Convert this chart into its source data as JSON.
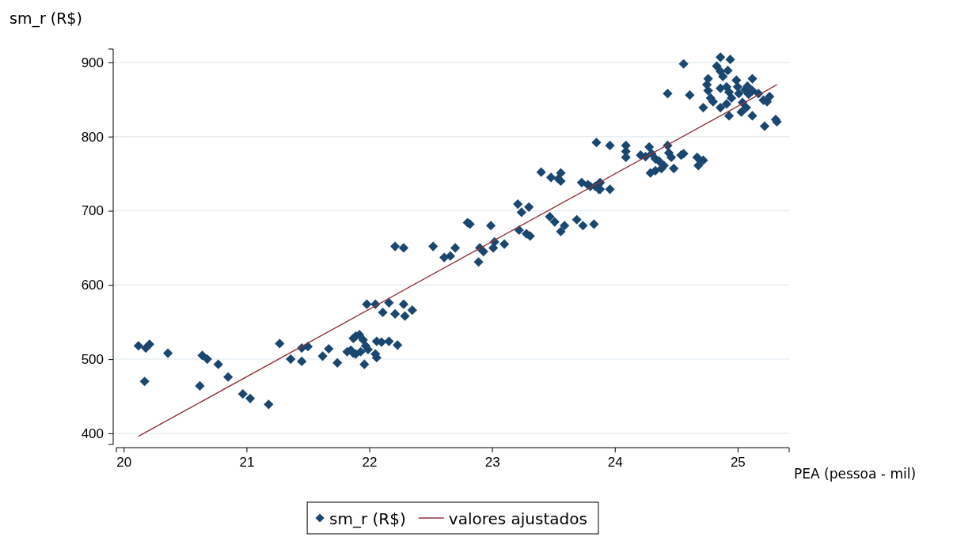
{
  "chart_data": {
    "type": "scatter",
    "xlabel": "PEA (pessoa - mil)",
    "ylabel": "sm_r (R$)",
    "xlim": [
      19.94,
      25.42
    ],
    "ylim": [
      385,
      918
    ],
    "xticks": [
      20,
      21,
      22,
      23,
      24,
      25
    ],
    "yticks": [
      400,
      500,
      600,
      700,
      800,
      900
    ],
    "grid": "y",
    "legend": "bottom",
    "series": [
      {
        "name": "sm_r (R$)",
        "color": "#1a476f",
        "marker": "diamond",
        "x": [
          20.12,
          20.18,
          20.21,
          20.17,
          20.36,
          20.62,
          20.64,
          20.68,
          20.77,
          20.85,
          20.97,
          21.03,
          21.18,
          21.27,
          21.36,
          21.45,
          21.45,
          21.5,
          21.62,
          21.67,
          21.74,
          21.82,
          21.87,
          21.87,
          21.89,
          21.92,
          21.95,
          21.85,
          21.89,
          21.93,
          21.97,
          21.99,
          21.96,
          22.05,
          22.06,
          22.06,
          22.1,
          22.16,
          22.23,
          21.98,
          22.05,
          22.16,
          22.11,
          22.21,
          22.28,
          22.29,
          22.35,
          22.21,
          22.28,
          22.52,
          22.7,
          22.61,
          22.66,
          22.89,
          22.9,
          22.93,
          23.02,
          23.1,
          22.8,
          22.82,
          22.99,
          23.01,
          23.21,
          23.24,
          23.3,
          23.22,
          23.28,
          23.31,
          23.4,
          23.48,
          23.54,
          23.56,
          23.56,
          23.47,
          23.51,
          23.59,
          23.56,
          23.69,
          23.74,
          23.83,
          23.73,
          23.8,
          23.87,
          23.88,
          23.78,
          23.84,
          23.88,
          23.87,
          23.96,
          23.85,
          23.96,
          24.09,
          24.09,
          24.09,
          24.21,
          24.25,
          24.28,
          24.3,
          24.33,
          24.36,
          24.4,
          24.29,
          24.33,
          24.38,
          24.43,
          24.44,
          24.46,
          24.48,
          24.54,
          24.56,
          24.67,
          24.7,
          24.72,
          24.68,
          24.56,
          24.43,
          24.61,
          24.72,
          24.76,
          24.75,
          24.76,
          24.78,
          24.8,
          24.83,
          24.86,
          24.92,
          24.88,
          24.86,
          24.94,
          24.86,
          24.91,
          24.86,
          24.91,
          24.95,
          24.93,
          24.93,
          24.99,
          25,
          25.01,
          25.04,
          25.03,
          25.06,
          25.08,
          25.09,
          25.07,
          25.12,
          25.12,
          25.17,
          25.12,
          25.21,
          25.24,
          25.26,
          25.22,
          25.31,
          25.32
        ],
        "values": [
          518,
          515,
          520,
          470,
          508,
          464,
          505,
          500,
          493,
          476,
          453,
          447,
          439,
          521,
          500,
          497,
          515,
          517,
          504,
          514,
          495,
          510,
          508,
          528,
          531,
          533,
          526,
          512,
          507,
          510,
          518,
          513,
          493,
          507,
          502,
          524,
          523,
          524,
          519,
          574,
          574,
          576,
          563,
          561,
          574,
          558,
          566,
          652,
          650,
          652,
          650,
          637,
          639,
          631,
          650,
          645,
          658,
          655,
          684,
          682,
          680,
          650,
          709,
          698,
          705,
          674,
          669,
          666,
          752,
          745,
          743,
          751,
          740,
          692,
          685,
          680,
          672,
          688,
          680,
          682,
          738,
          733,
          736,
          729,
          735,
          733,
          738,
          729,
          729,
          792,
          788,
          788,
          780,
          772,
          775,
          773,
          786,
          777,
          770,
          767,
          761,
          751,
          754,
          757,
          788,
          778,
          772,
          757,
          775,
          777,
          772,
          767,
          768,
          761,
          898,
          858,
          856,
          839,
          878,
          870,
          862,
          852,
          847,
          895,
          888,
          889,
          881,
          907,
          904,
          865,
          867,
          839,
          844,
          852,
          860,
          828,
          876,
          867,
          858,
          846,
          833,
          863,
          868,
          857,
          839,
          878,
          862,
          858,
          828,
          849,
          847,
          854,
          814,
          823,
          820
        ]
      },
      {
        "name": "valores ajustados",
        "type": "line",
        "color": "#90353b",
        "line_style": "solid",
        "x": [
          20.12,
          25.32
        ],
        "values": [
          396,
          870
        ]
      }
    ]
  }
}
